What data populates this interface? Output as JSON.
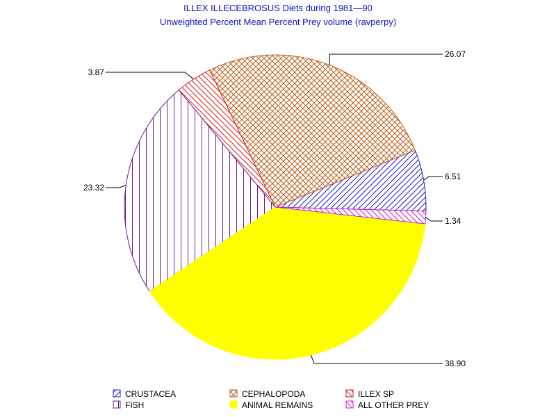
{
  "chart_data": {
    "type": "pie",
    "title": "ILLEX ILLECEBROSUS Diets during 1981—90",
    "subtitle": "Unweighted Percent Mean Percent Prey  volume (ravperpy)",
    "slices": [
      {
        "name": "CRUSTACEA",
        "value": 6.51,
        "label": "6.51",
        "color": "#1c1ccc",
        "pattern": "diagonal-up"
      },
      {
        "name": "CEPHALOPODA",
        "value": 26.07,
        "label": "26.07",
        "color": "#b8601c",
        "pattern": "crosshatch"
      },
      {
        "name": "ILLEX SP",
        "value": 3.87,
        "label": "3.87",
        "color": "#dd1c1c",
        "pattern": "diagonal-down"
      },
      {
        "name": "FISH",
        "value": 23.32,
        "label": "23.32",
        "color": "#6a1c8c",
        "pattern": "vertical"
      },
      {
        "name": "ANIMAL REMAINS",
        "value": 38.9,
        "label": "38.90",
        "color": "#ffff00",
        "pattern": "solid"
      },
      {
        "name": "ALL OTHER PREY",
        "value": 1.34,
        "label": "1.34",
        "color": "#cc1ccc",
        "pattern": "diagonal-down"
      }
    ],
    "legend_position": "bottom"
  }
}
